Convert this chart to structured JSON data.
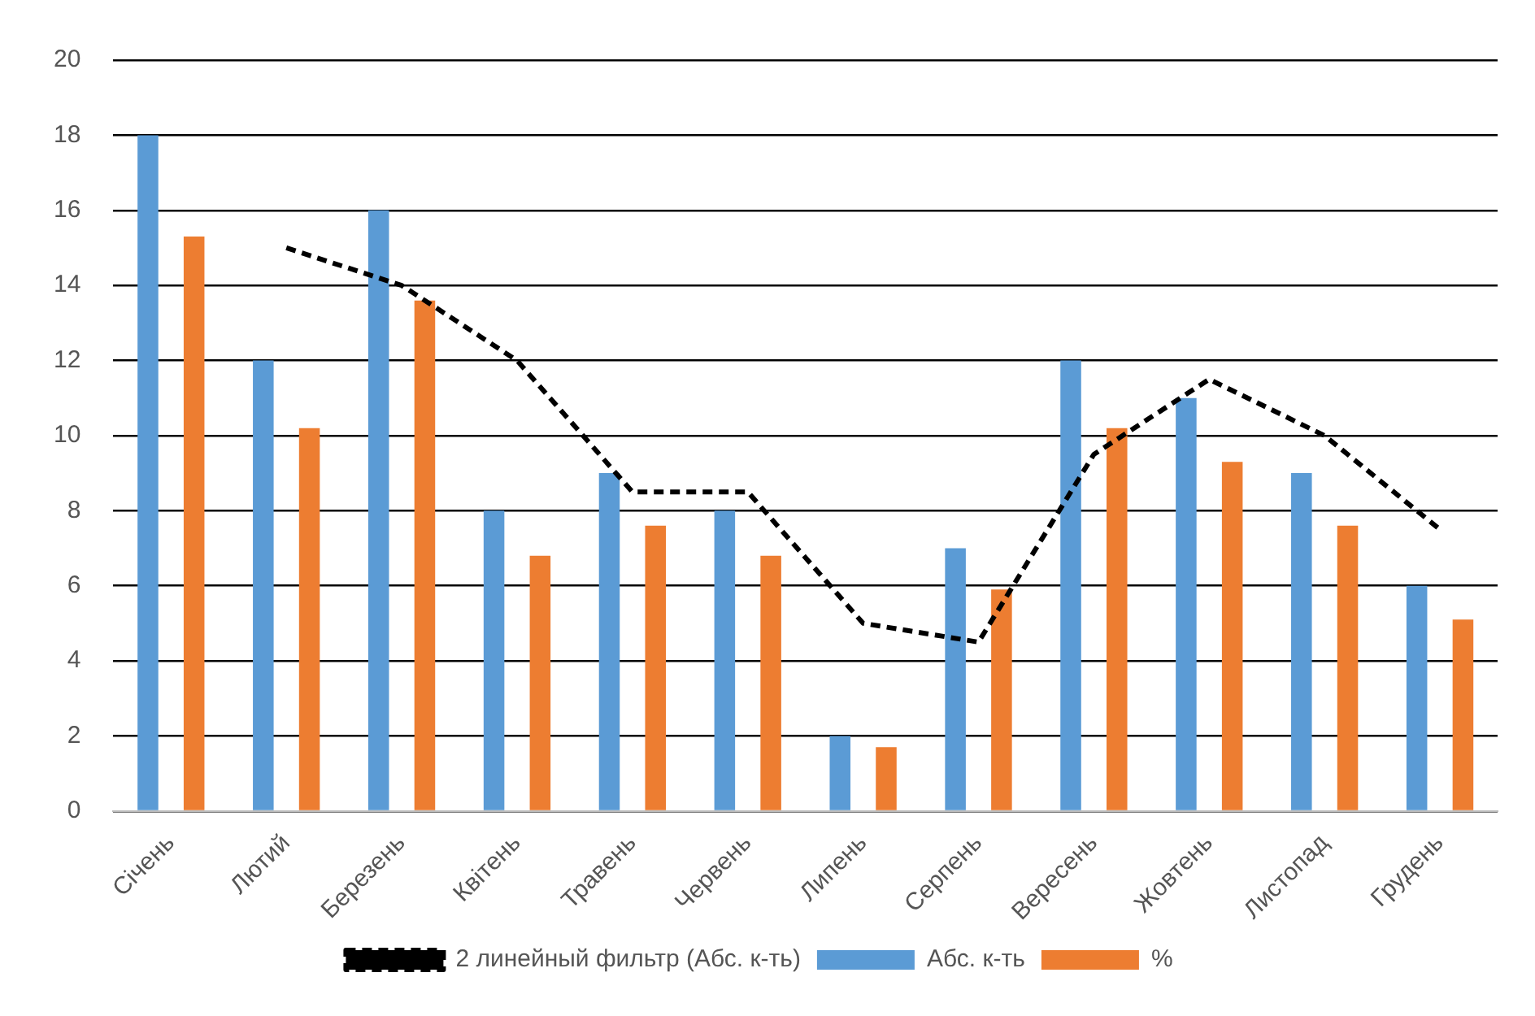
{
  "chart_data": {
    "type": "bar",
    "categories": [
      "Січень",
      "Лютий",
      "Березень",
      "Квітень",
      "Травень",
      "Червень",
      "Липень",
      "Серпень",
      "Вересень",
      "Жовтень",
      "Листопад",
      "Грудень"
    ],
    "series": [
      {
        "name": "Абс. к-ть",
        "color": "#5b9bd5",
        "values": [
          18,
          12,
          16,
          8,
          9,
          8,
          2,
          7,
          12,
          11,
          9,
          6
        ]
      },
      {
        "name": "%",
        "color": "#ed7d31",
        "values": [
          15.3,
          10.2,
          13.6,
          6.8,
          7.6,
          6.8,
          1.7,
          5.9,
          10.2,
          9.3,
          7.6,
          5.1
        ]
      },
      {
        "name": "2 линейный фильтр (Абс. к-ть)",
        "type": "line",
        "color": "#000000",
        "line_style": "dashed",
        "marker": "none",
        "values": [
          null,
          15,
          14,
          12,
          8.5,
          8.5,
          5,
          4.5,
          9.5,
          11.5,
          10,
          7.5
        ]
      }
    ],
    "ylim": [
      0,
      20
    ],
    "yticks": [
      0,
      2,
      4,
      6,
      8,
      10,
      12,
      14,
      16,
      18,
      20
    ],
    "grid": "y",
    "legend": "bottom"
  }
}
